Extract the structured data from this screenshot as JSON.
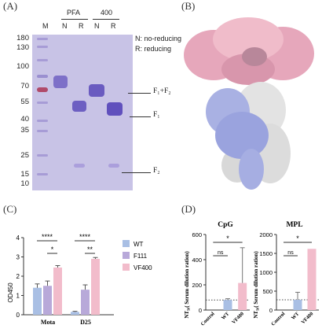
{
  "panels": {
    "a": "(A)",
    "b": "(B)",
    "c": "(C)",
    "d": "(D)"
  },
  "gel": {
    "group_labels": [
      "PFA",
      "400"
    ],
    "lane_labels": [
      "M",
      "N",
      "R",
      "N",
      "R"
    ],
    "mw_markers": [
      "180",
      "130",
      "100",
      "70",
      "55",
      "40",
      "35",
      "25",
      "15",
      "10"
    ],
    "legend": [
      "N: no-reducing",
      "R: reducing"
    ],
    "band_labels": {
      "f1f2": "F₁+F₂",
      "f1": "F₁",
      "f2": "F₂"
    }
  },
  "chart_data": [
    {
      "type": "bar",
      "panel": "C",
      "ylabel": "OD450",
      "categories": [
        "Mota",
        "D25"
      ],
      "ylim": [
        0,
        4
      ],
      "yticks": [
        "0",
        "1",
        "2",
        "3",
        "4"
      ],
      "series": [
        {
          "name": "WT",
          "color": "#a9bfe4",
          "values": [
            1.4,
            0.15
          ],
          "errors": [
            0.2,
            0.03
          ]
        },
        {
          "name": "F111",
          "color": "#b8a9d9",
          "values": [
            1.5,
            1.3
          ],
          "errors": [
            0.25,
            0.25
          ]
        },
        {
          "name": "VF400",
          "color": "#f2bccb",
          "values": [
            2.45,
            2.9
          ],
          "errors": [
            0.1,
            0.07
          ]
        }
      ],
      "annotations": [
        "****",
        "*",
        "****",
        "**"
      ]
    },
    {
      "type": "bar",
      "panel": "D",
      "title": "CpG",
      "ylabel": "NT₅₀( Serum dilution ration)",
      "categories": [
        "Control",
        "WT",
        "VF400"
      ],
      "ylim": [
        0,
        600
      ],
      "yticks": [
        "0",
        "200",
        "400",
        "600"
      ],
      "values": [
        0,
        80,
        215
      ],
      "errors_up": [
        0,
        10,
        280
      ],
      "colors": [
        "#a9bfe4",
        "#a9bfe4",
        "#f2bccb"
      ],
      "threshold": 80,
      "annotations": [
        "ns",
        "*"
      ]
    },
    {
      "type": "bar",
      "panel": "D",
      "title": "MPL",
      "ylabel": "NT₅₀( Serum dilution ration)",
      "categories": [
        "Control",
        "WT",
        "VF400"
      ],
      "ylim": [
        0,
        2000
      ],
      "yticks": [
        "0",
        "500",
        "1000",
        "1500",
        "2000"
      ],
      "values": [
        0,
        270,
        1620
      ],
      "errors_up": [
        0,
        200,
        0
      ],
      "colors": [
        "#a9bfe4",
        "#a9bfe4",
        "#f2bccb"
      ],
      "threshold": 270,
      "annotations": [
        "ns",
        "*"
      ]
    }
  ]
}
